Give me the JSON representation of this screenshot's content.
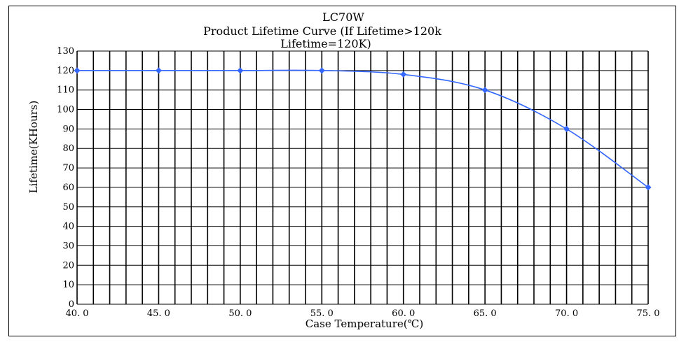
{
  "chart_data": {
    "type": "line",
    "title": "LC70W",
    "subtitle": "Product Lifetime Curve (If Lifetime>120k",
    "subtitle2": "Lifetime=120K)",
    "xlabel": "Case Temperature(℃)",
    "ylabel": "Lifetime(KHours)",
    "x": [
      40.0,
      45.0,
      50.0,
      55.0,
      60.0,
      65.0,
      70.0,
      75.0
    ],
    "x_tick_labels": [
      "40. 0",
      "45. 0",
      "50. 0",
      "55. 0",
      "60. 0",
      "65. 0",
      "70. 0",
      "75. 0"
    ],
    "series": [
      {
        "values": [
          120,
          120,
          120,
          120,
          118,
          110,
          90,
          60
        ],
        "color": "#3366ff"
      }
    ],
    "xlim": [
      40,
      75
    ],
    "ylim": [
      0,
      130
    ],
    "y_ticks": [
      0,
      10,
      20,
      30,
      40,
      50,
      60,
      70,
      80,
      90,
      100,
      110,
      120,
      130
    ],
    "vertical_grid_step": 1,
    "grid": true,
    "legend": "none"
  }
}
